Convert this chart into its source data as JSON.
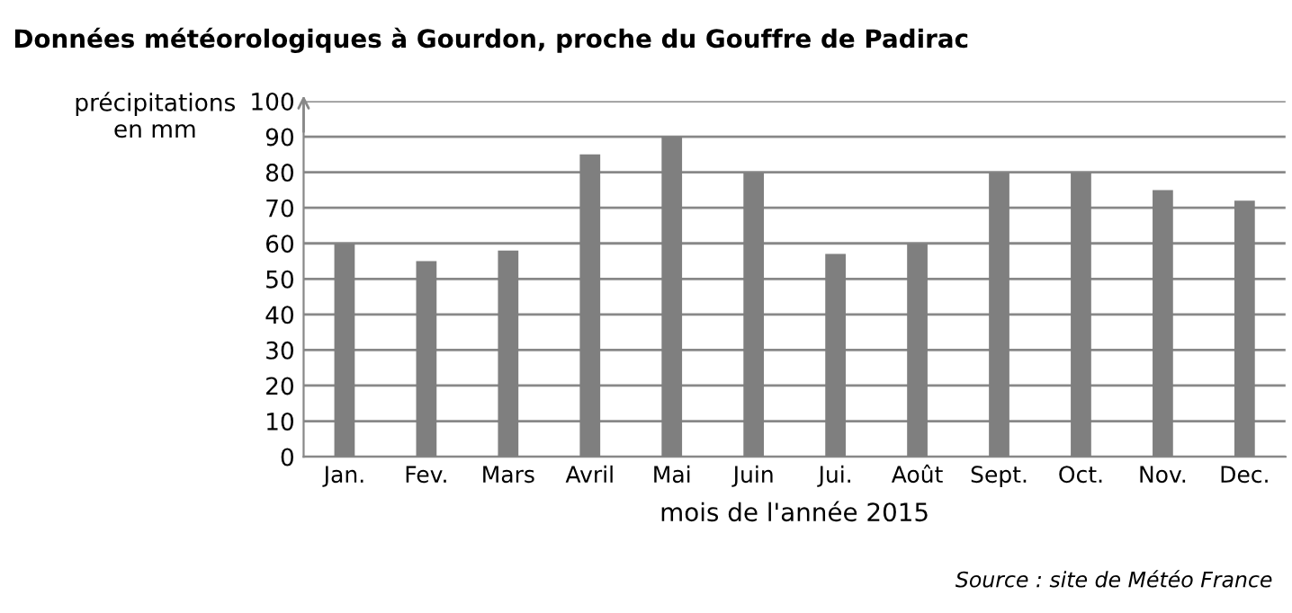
{
  "chart_data": {
    "type": "bar",
    "title": "Données météorologiques à Gourdon, proche du Gouffre de Padirac",
    "ylabel": "précipitations\nen mm",
    "xlabel": "mois de l'année 2015",
    "categories": [
      "Jan.",
      "Fev.",
      "Mars",
      "Avril",
      "Mai",
      "Juin",
      "Jui.",
      "Août",
      "Sept.",
      "Oct.",
      "Nov.",
      "Dec."
    ],
    "values": [
      60,
      55,
      58,
      85,
      90,
      80,
      57,
      60,
      80,
      80,
      75,
      72
    ],
    "color": "#7f7f7f",
    "ylim": [
      0,
      100
    ],
    "yticks": [
      0,
      10,
      20,
      30,
      40,
      50,
      60,
      70,
      80,
      90,
      100
    ],
    "grid": "y",
    "annotations": [
      "Source : site de Météo France"
    ]
  }
}
